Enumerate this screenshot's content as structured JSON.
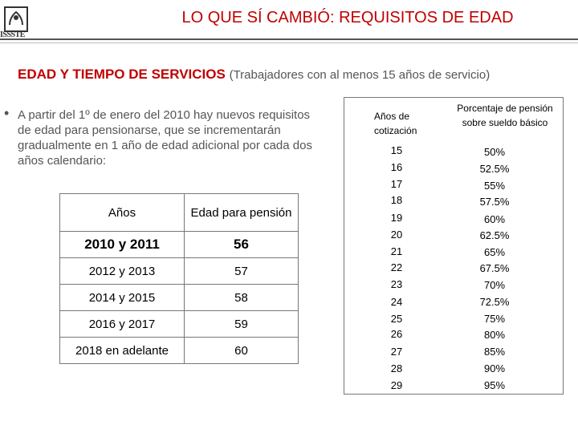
{
  "header": {
    "logo_text": "ISSSTE",
    "title": "LO QUE SÍ CAMBIÓ: REQUISITOS DE EDAD"
  },
  "section": {
    "heading": "EDAD Y TIEMPO DE SERVICIOS",
    "heading_note": "(Trabajadores con al menos 15 años de servicio)"
  },
  "paragraph": "A partir del 1º de enero del 2010 hay nuevos requisitos de edad para pensionarse, que se incrementarán gradualmente en 1 año de edad adicional por cada dos años calendario:",
  "age_table": {
    "headers": [
      "Años",
      "Edad para pensión"
    ],
    "rows": [
      {
        "years": "2010 y 2011",
        "age": "56"
      },
      {
        "years": "2012 y 2013",
        "age": "57"
      },
      {
        "years": "2014 y 2015",
        "age": "58"
      },
      {
        "years": "2016 y 2017",
        "age": "59"
      },
      {
        "years": "2018 en adelante",
        "age": "60"
      }
    ]
  },
  "pension_table": {
    "header_years": "Años de cotización",
    "header_pct": "Porcentaje de pensión sobre sueldo básico",
    "years": [
      "15",
      "16",
      "17",
      "18",
      "19",
      "20",
      "21",
      "22",
      "23",
      "24",
      "25",
      "26",
      "27",
      "28",
      "29"
    ],
    "percentages": [
      "50%",
      "52.5%",
      "55%",
      "57.5%",
      "60%",
      "62.5%",
      "65%",
      "67.5%",
      "70%",
      "72.5%",
      "75%",
      "80%",
      "85%",
      "90%",
      "95%"
    ]
  }
}
